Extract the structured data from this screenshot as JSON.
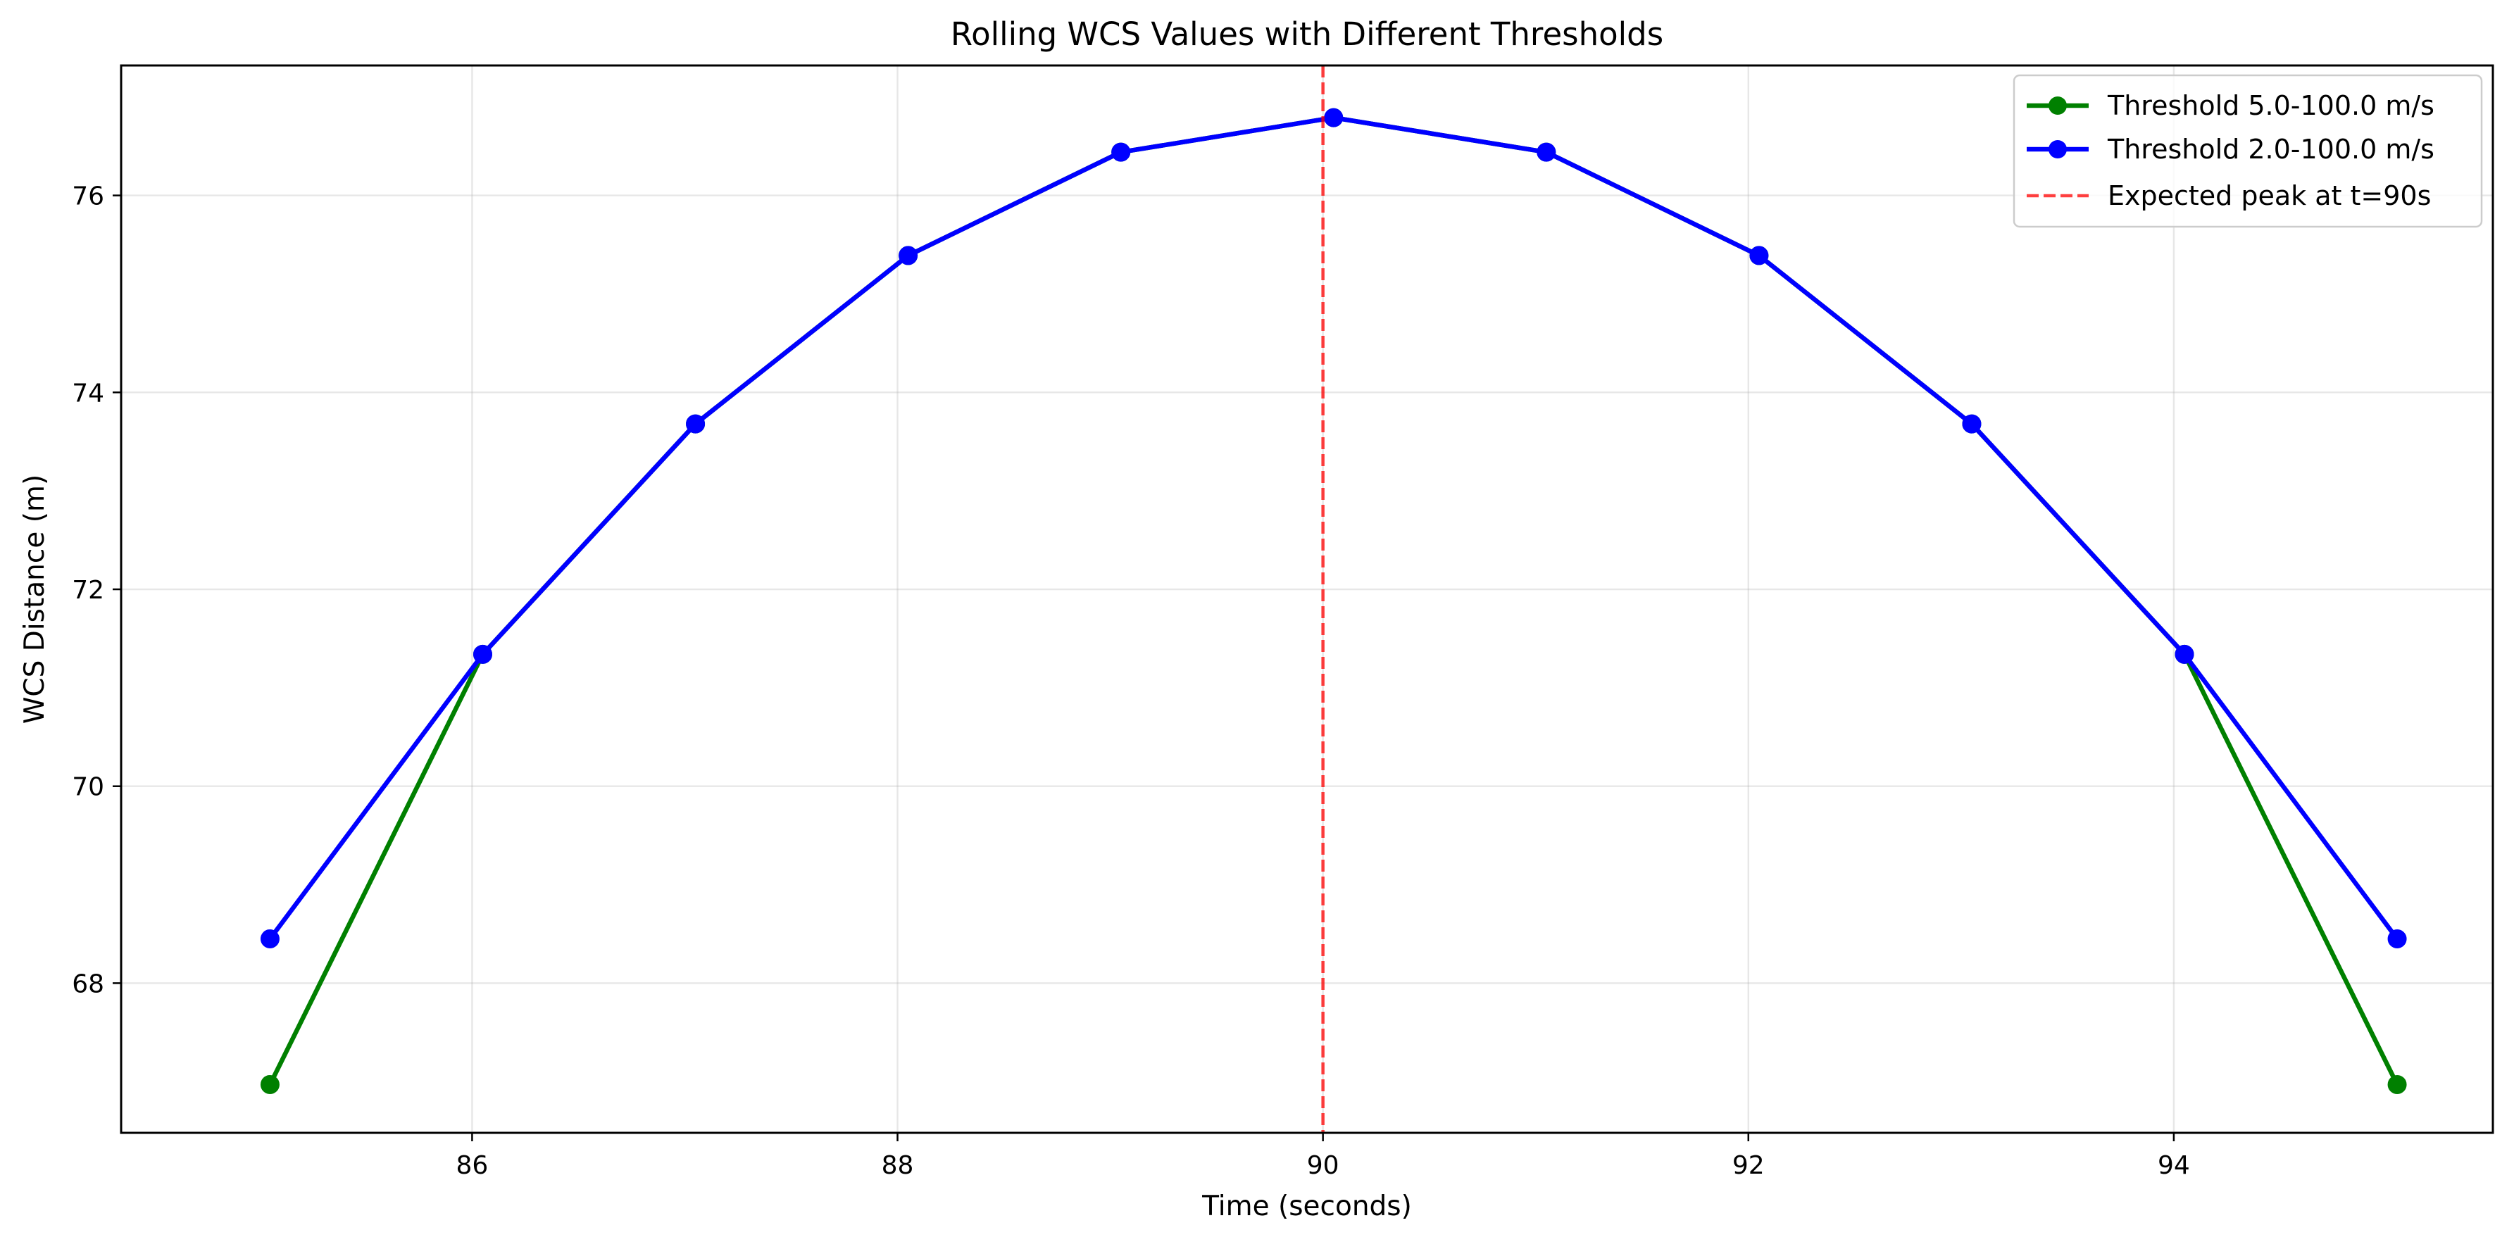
{
  "chart_data": {
    "type": "line",
    "title": "Rolling WCS Values with Different Thresholds",
    "xlabel": "Time (seconds)",
    "ylabel": "WCS Distance (m)",
    "xlim": [
      84.35,
      95.5
    ],
    "ylim": [
      66.48,
      77.32
    ],
    "xticks": [
      86,
      88,
      90,
      92,
      94
    ],
    "xtick_labels": [
      "86",
      "88",
      "90",
      "92",
      "94"
    ],
    "yticks": [
      68,
      70,
      72,
      74,
      76
    ],
    "ytick_labels": [
      "68",
      "70",
      "72",
      "74",
      "76"
    ],
    "grid": true,
    "legend_position": "top-right",
    "series": [
      {
        "name": "Threshold 5.0-100.0 m/s",
        "color": "#008000",
        "marker": "circle",
        "x": [
          85.05,
          86.05,
          87.05,
          88.05,
          89.05,
          90.05,
          91.05,
          92.05,
          93.05,
          94.05,
          95.05
        ],
        "y": [
          66.97,
          71.34,
          73.68,
          75.39,
          76.44,
          76.79,
          76.44,
          75.39,
          73.68,
          71.34,
          66.97
        ]
      },
      {
        "name": "Threshold 2.0-100.0 m/s",
        "color": "#0000ff",
        "marker": "circle",
        "x": [
          85.05,
          86.05,
          87.05,
          88.05,
          89.05,
          90.05,
          91.05,
          92.05,
          93.05,
          94.05,
          95.05
        ],
        "y": [
          68.45,
          71.34,
          73.68,
          75.39,
          76.44,
          76.79,
          76.44,
          75.39,
          73.68,
          71.34,
          68.45
        ]
      }
    ],
    "reference_lines": [
      {
        "name": "Expected peak at t=90s",
        "orientation": "vertical",
        "x": 90,
        "color": "#ff0000",
        "style": "dashed"
      }
    ]
  }
}
